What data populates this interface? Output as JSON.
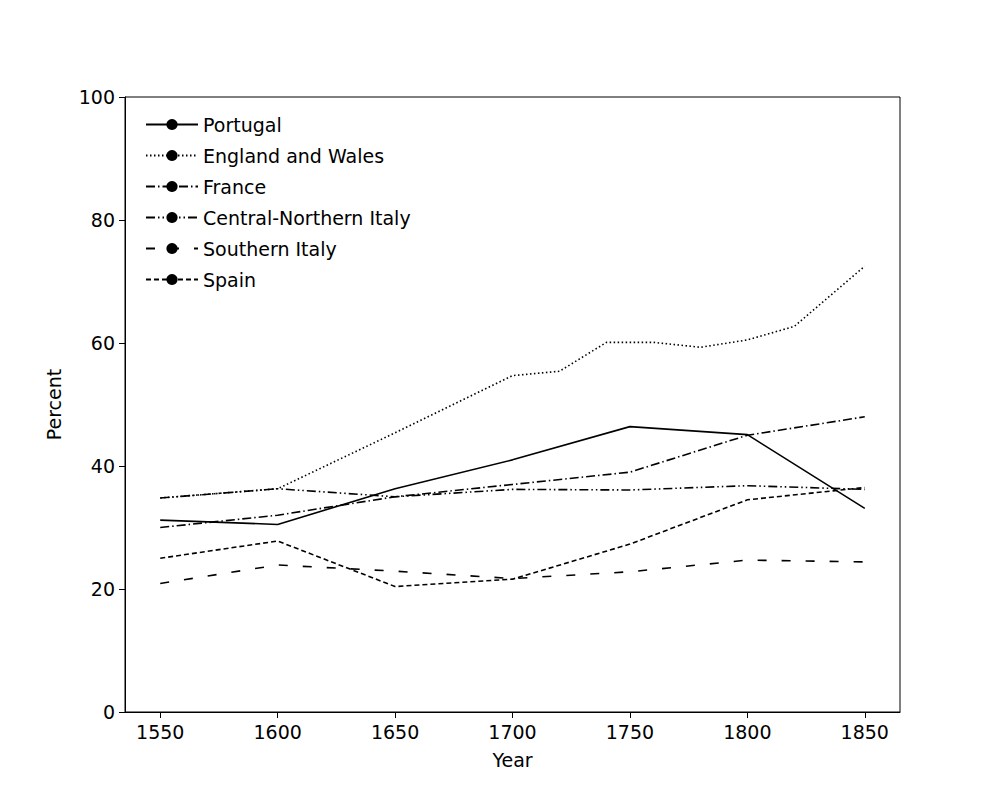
{
  "chart_data": {
    "type": "line",
    "x_label": "Year",
    "y_label": "Percent",
    "xlim": [
      1535,
      1865
    ],
    "xticks": [
      1550,
      1600,
      1650,
      1700,
      1750,
      1800,
      1850
    ],
    "ylim": [
      0,
      100
    ],
    "yticks": [
      0,
      20,
      40,
      60,
      80,
      100
    ],
    "grid": false,
    "legend": "upper left",
    "series": [
      {
        "name": "Portugal",
        "color": "#000000",
        "line_style": "solid",
        "x": [
          1550,
          1600,
          1650,
          1700,
          1750,
          1800,
          1850
        ],
        "values": [
          31.2,
          30.5,
          36.3,
          41.0,
          46.4,
          45.1,
          33.1
        ]
      },
      {
        "name": "England and Wales",
        "color": "#000000",
        "line_style": "dotted",
        "x": [
          1550,
          1600,
          1650,
          1700,
          1720,
          1740,
          1760,
          1780,
          1800,
          1820,
          1850
        ],
        "values": [
          34.8,
          36.3,
          45.4,
          54.7,
          55.4,
          60.1,
          60.1,
          59.3,
          60.5,
          62.7,
          72.5
        ]
      },
      {
        "name": "France",
        "color": "#000000",
        "line_style": "dashdot",
        "x": [
          1550,
          1600,
          1650,
          1700,
          1750,
          1800,
          1850
        ],
        "values": [
          30.0,
          32.0,
          35.0,
          37.0,
          39.0,
          45.0,
          48.0
        ]
      },
      {
        "name": "Central-Northern Italy",
        "color": "#000000",
        "line_style": "dashdotdot",
        "x": [
          1550,
          1600,
          1650,
          1700,
          1750,
          1800,
          1850
        ],
        "values": [
          34.8,
          36.3,
          35.0,
          36.2,
          36.1,
          36.8,
          36.2
        ]
      },
      {
        "name": "Southern Italy",
        "color": "#000000",
        "line_style": "loosedash",
        "x": [
          1550,
          1600,
          1650,
          1700,
          1750,
          1800,
          1850
        ],
        "values": [
          20.9,
          23.9,
          22.9,
          21.7,
          22.8,
          24.7,
          24.4
        ]
      },
      {
        "name": "Spain",
        "color": "#000000",
        "line_style": "dashed",
        "x": [
          1550,
          1600,
          1650,
          1700,
          1750,
          1800,
          1850
        ],
        "values": [
          25.0,
          27.8,
          20.4,
          21.6,
          27.3,
          34.5,
          36.5
        ]
      }
    ]
  }
}
